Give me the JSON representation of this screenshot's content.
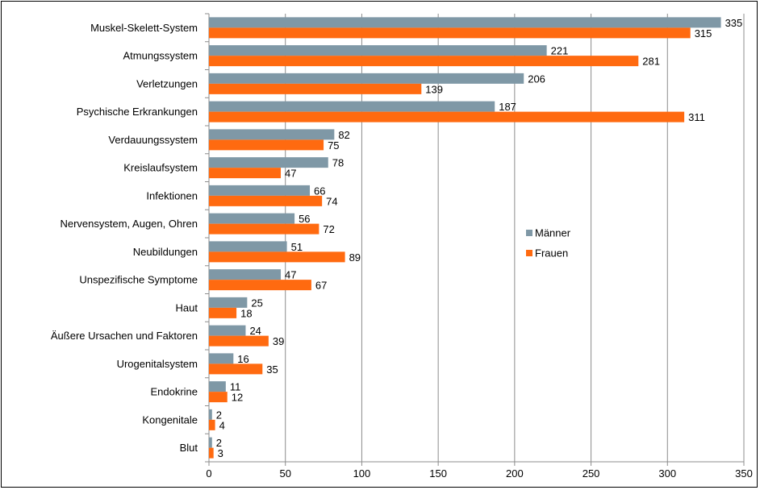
{
  "chart_data": {
    "type": "bar",
    "orientation": "horizontal",
    "title": "",
    "xlabel": "",
    "ylabel": "",
    "xlim": [
      0,
      350
    ],
    "x_ticks": [
      0,
      50,
      100,
      150,
      200,
      250,
      300,
      350
    ],
    "grid": "vertical",
    "legend_position": "right-middle",
    "categories": [
      "Muskel-Skelett-System",
      "Atmungssystem",
      "Verletzungen",
      "Psychische Erkrankungen",
      "Verdauungssystem",
      "Kreislaufsystem",
      "Infektionen",
      "Nervensystem, Augen, Ohren",
      "Neubildungen",
      "Unspezifische Symptome",
      "Haut",
      "Äußere Ursachen und Faktoren",
      "Urogenitalsystem",
      "Endokrine",
      "Kongenitale",
      "Blut"
    ],
    "series": [
      {
        "name": "Männer",
        "color": "#7f98a6",
        "values": [
          335,
          221,
          206,
          187,
          82,
          78,
          66,
          56,
          51,
          47,
          25,
          24,
          16,
          11,
          2,
          2
        ]
      },
      {
        "name": "Frauen",
        "color": "#ff6a10",
        "values": [
          315,
          281,
          139,
          311,
          75,
          47,
          74,
          72,
          89,
          67,
          18,
          39,
          35,
          12,
          4,
          3
        ]
      }
    ]
  }
}
